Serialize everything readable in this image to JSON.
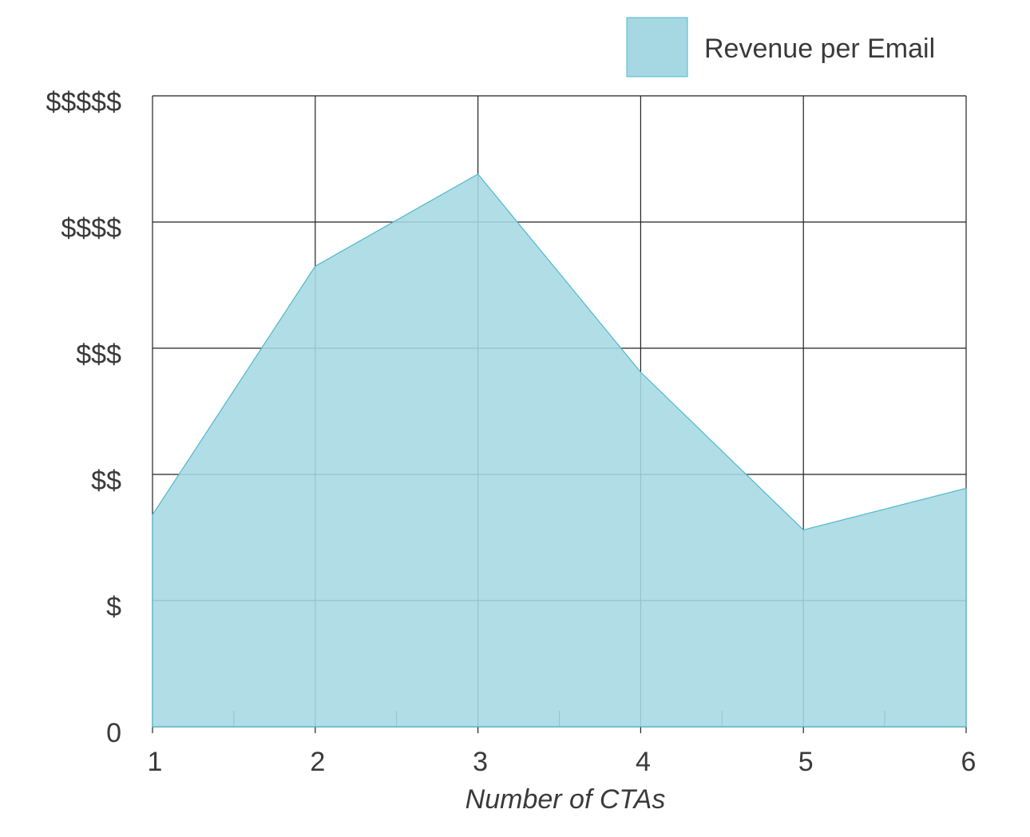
{
  "chart_data": {
    "type": "area",
    "x_label": "Number of CTAs",
    "x": [
      1,
      2,
      3,
      4,
      5,
      6
    ],
    "series": [
      {
        "name": "Revenue per Email",
        "color": "#a6d8e4",
        "values": [
          1.68,
          3.65,
          4.38,
          2.81,
          1.56,
          1.89
        ]
      }
    ],
    "xlim": [
      1,
      6
    ],
    "xticks": [
      1,
      2,
      3,
      4,
      5,
      6
    ],
    "xminorticks": [
      1.5,
      2.5,
      3.5,
      4.5,
      5.5
    ],
    "ylim": [
      0,
      5
    ],
    "yticks": [
      0,
      {
        "value": 1,
        "label": "$"
      },
      {
        "value": 2,
        "label": "$$"
      },
      {
        "value": 3,
        "label": "$$$"
      },
      {
        "value": 4,
        "label": "$$$$"
      },
      {
        "value": 5,
        "label": "$$$$$"
      }
    ],
    "grid": true,
    "legend": "top-right"
  }
}
